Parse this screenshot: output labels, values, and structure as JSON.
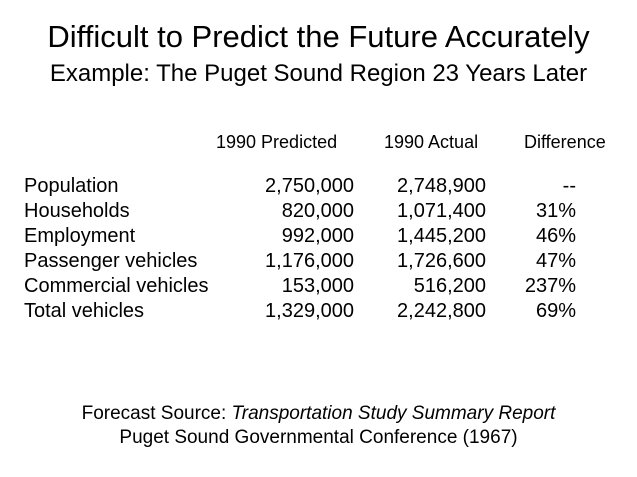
{
  "title": "Difficult to Predict the Future Accurately",
  "subtitle": "Example: The Puget Sound Region 23 Years Later",
  "table": {
    "headers": {
      "predicted": "1990 Predicted",
      "actual": "1990 Actual",
      "difference": "Difference"
    },
    "rows": [
      {
        "label": "Population",
        "predicted": "2,750,000",
        "actual": "2,748,900",
        "difference": "--"
      },
      {
        "label": "Households",
        "predicted": "820,000",
        "actual": "1,071,400",
        "difference": "31%"
      },
      {
        "label": "Employment",
        "predicted": "992,000",
        "actual": "1,445,200",
        "difference": "46%"
      },
      {
        "label": "Passenger vehicles",
        "predicted": "1,176,000",
        "actual": "1,726,600",
        "difference": "47%"
      },
      {
        "label": "Commercial vehicles",
        "predicted": "153,000",
        "actual": "516,200",
        "difference": "237%"
      },
      {
        "label": "Total vehicles",
        "predicted": "1,329,000",
        "actual": "2,242,800",
        "difference": "69%"
      }
    ]
  },
  "source": {
    "prefix": "Forecast Source: ",
    "report_title": "Transportation Study Summary Report",
    "line2": "Puget Sound Governmental Conference (1967)"
  }
}
